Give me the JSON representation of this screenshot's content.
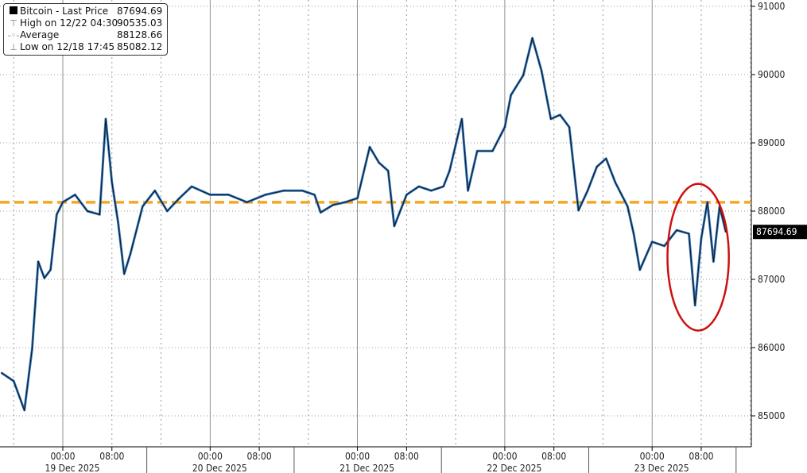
{
  "chart_data": {
    "type": "line",
    "title": "",
    "xlabel": "",
    "ylabel": "",
    "ylim": [
      84600,
      91100
    ],
    "y_ticks": [
      85000,
      86000,
      87000,
      88000,
      89000,
      90000,
      91000
    ],
    "y_axis_side": "right",
    "grid": true,
    "legend_placement": "top-left",
    "x_ticks": [
      {
        "time": "00:00",
        "date": "19 Dec 2025"
      },
      {
        "time": "08:00",
        "date": ""
      },
      {
        "time": "00:00",
        "date": "20 Dec 2025"
      },
      {
        "time": "08:00",
        "date": ""
      },
      {
        "time": "00:00",
        "date": "21 Dec 2025"
      },
      {
        "time": "08:00",
        "date": ""
      },
      {
        "time": "00:00",
        "date": "22 Dec 2025"
      },
      {
        "time": "08:00",
        "date": ""
      },
      {
        "time": "00:00",
        "date": "23 Dec 2025"
      },
      {
        "time": "08:00",
        "date": ""
      }
    ],
    "legend": [
      {
        "icon": "filled-square",
        "label": "Bitcoin - Last Price",
        "value": "87694.69"
      },
      {
        "icon": "high-marker",
        "label": "High on 12/22 04:30",
        "value": "90535.03"
      },
      {
        "icon": "average-marker",
        "label": "Average",
        "value": "88128.66"
      },
      {
        "icon": "low-marker",
        "label": "Low on 12/18 17:45",
        "value": "85082.12"
      }
    ],
    "last_price_label": "87694.69",
    "average": 88128.66,
    "colors": {
      "series": "#1a1a1a",
      "series_highlight": "#2f7fd0",
      "average": "#f5a623",
      "annotation": "#cc1111",
      "last_price_box": "#000000"
    },
    "annotation": {
      "type": "ellipse",
      "from": "2025-12-23 02:30",
      "to": "2025-12-23 12:30",
      "low": 86250,
      "high": 88400
    },
    "series": [
      {
        "x": [
          "2025-12-18 14:00",
          "2025-12-18 16:00",
          "2025-12-18 17:45",
          "2025-12-18 19:00",
          "2025-12-18 20:00",
          "2025-12-18 21:00",
          "2025-12-18 22:00",
          "2025-12-18 23:00",
          "2025-12-19 00:00",
          "2025-12-19 02:00",
          "2025-12-19 04:00",
          "2025-12-19 06:00",
          "2025-12-19 07:00",
          "2025-12-19 08:00",
          "2025-12-19 09:00",
          "2025-12-19 10:00",
          "2025-12-19 11:00",
          "2025-12-19 13:00",
          "2025-12-19 15:00",
          "2025-12-19 17:00",
          "2025-12-19 19:00",
          "2025-12-19 21:00",
          "2025-12-20 00:00",
          "2025-12-20 03:00",
          "2025-12-20 06:00",
          "2025-12-20 09:00",
          "2025-12-20 12:00",
          "2025-12-20 15:00",
          "2025-12-20 17:00",
          "2025-12-20 18:00",
          "2025-12-20 20:00",
          "2025-12-20 22:00",
          "2025-12-21 00:00",
          "2025-12-21 02:00",
          "2025-12-21 03:30",
          "2025-12-21 05:00",
          "2025-12-21 06:00",
          "2025-12-21 08:00",
          "2025-12-21 10:00",
          "2025-12-21 12:00",
          "2025-12-21 14:00",
          "2025-12-21 15:00",
          "2025-12-21 17:00",
          "2025-12-21 18:00",
          "2025-12-21 19:30",
          "2025-12-21 22:00",
          "2025-12-22 00:00",
          "2025-12-22 01:00",
          "2025-12-22 03:00",
          "2025-12-22 04:30",
          "2025-12-22 06:00",
          "2025-12-22 07:30",
          "2025-12-22 09:00",
          "2025-12-22 10:30",
          "2025-12-22 12:00",
          "2025-12-22 13:30",
          "2025-12-22 15:00",
          "2025-12-22 16:30",
          "2025-12-22 18:00",
          "2025-12-22 20:00",
          "2025-12-22 21:00",
          "2025-12-22 22:00",
          "2025-12-23 00:00",
          "2025-12-23 02:00",
          "2025-12-23 04:00",
          "2025-12-23 06:00",
          "2025-12-23 07:00",
          "2025-12-23 08:00",
          "2025-12-23 09:00",
          "2025-12-23 10:00",
          "2025-12-23 11:00",
          "2025-12-23 12:00"
        ],
        "y": [
          85630,
          85510,
          85082,
          85980,
          87260,
          87020,
          87140,
          87950,
          88130,
          88240,
          88000,
          87950,
          89350,
          88420,
          87840,
          87080,
          87370,
          88070,
          88300,
          88000,
          88190,
          88360,
          88240,
          88240,
          88130,
          88240,
          88300,
          88300,
          88240,
          87980,
          88090,
          88130,
          88190,
          88940,
          88710,
          88590,
          87780,
          88240,
          88360,
          88300,
          88360,
          88590,
          89350,
          88300,
          88880,
          88880,
          89230,
          89700,
          89990,
          90535,
          90050,
          89350,
          89410,
          89230,
          88010,
          88300,
          88650,
          88770,
          88420,
          88070,
          87670,
          87140,
          87550,
          87490,
          87720,
          87670,
          86620,
          87600,
          88130,
          87260,
          88070,
          87695
        ]
      }
    ]
  }
}
